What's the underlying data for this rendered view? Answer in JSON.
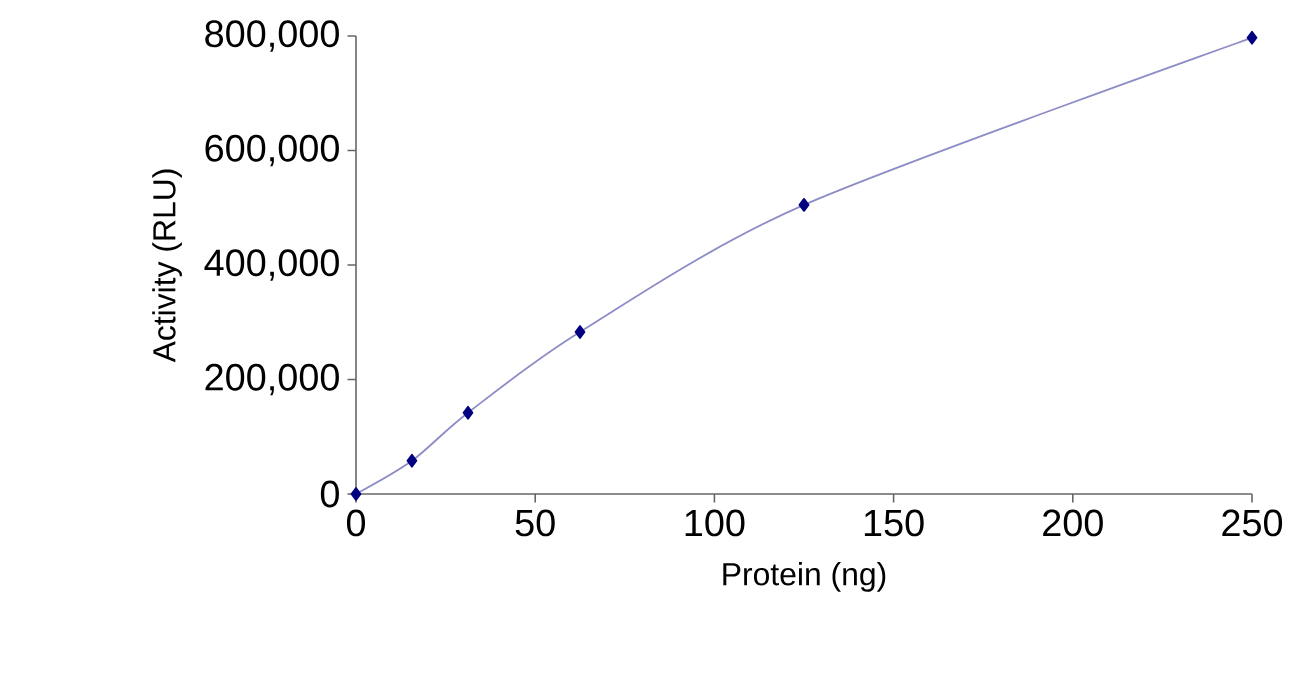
{
  "chart_data": {
    "type": "line",
    "xlabel": "Protein (ng)",
    "ylabel": "Activity (RLU)",
    "x": [
      0,
      15.6,
      31.25,
      62.5,
      125,
      250
    ],
    "series": [
      {
        "color": "#000080",
        "values": [
          0,
          58000,
          142000,
          283000,
          505000,
          797000
        ]
      }
    ],
    "xlim": [
      0,
      250
    ],
    "xticks": [
      0,
      50,
      100,
      150,
      200,
      250
    ],
    "ylim": [
      0,
      800000
    ],
    "yticks": [
      {
        "value": 0,
        "label": "0"
      },
      {
        "value": 200000,
        "label": "200,000"
      },
      {
        "value": 400000,
        "label": "400,000"
      },
      {
        "value": 600000,
        "label": "600,000"
      },
      {
        "value": 800000,
        "label": "800,000"
      }
    ],
    "marker": "diamond",
    "line_style": "solid",
    "grid": false
  }
}
